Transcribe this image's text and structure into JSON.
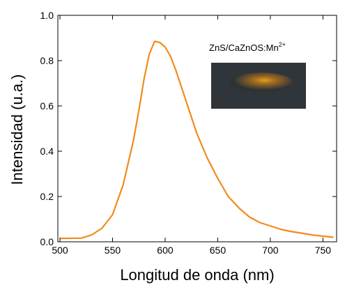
{
  "chart_data": {
    "type": "line",
    "x_label": "Longitud de onda (nm)",
    "y_label": "Intensidad (u.a.)",
    "annotation": {
      "text": "ZnS/CaZnOS:Mn",
      "superscript": "2+"
    },
    "x": [
      500,
      520,
      530,
      540,
      550,
      560,
      570,
      575,
      580,
      585,
      590,
      595,
      600,
      605,
      610,
      620,
      630,
      640,
      650,
      660,
      670,
      680,
      690,
      700,
      710,
      720,
      730,
      740,
      750,
      760
    ],
    "values": [
      0.015,
      0.016,
      0.03,
      0.06,
      0.12,
      0.25,
      0.45,
      0.58,
      0.72,
      0.83,
      0.885,
      0.88,
      0.86,
      0.82,
      0.76,
      0.62,
      0.48,
      0.37,
      0.28,
      0.2,
      0.15,
      0.11,
      0.085,
      0.07,
      0.055,
      0.045,
      0.038,
      0.03,
      0.025,
      0.02
    ],
    "color": "#f28a1c",
    "xlim": [
      498,
      763
    ],
    "ylim": [
      0,
      1
    ],
    "xticks": [
      500,
      550,
      600,
      650,
      700,
      750
    ],
    "yticks": [
      {
        "value": 0,
        "label": "0.0"
      },
      0.2,
      0.4,
      0.6,
      0.8,
      {
        "value": 1,
        "label": "1.0"
      }
    ]
  }
}
